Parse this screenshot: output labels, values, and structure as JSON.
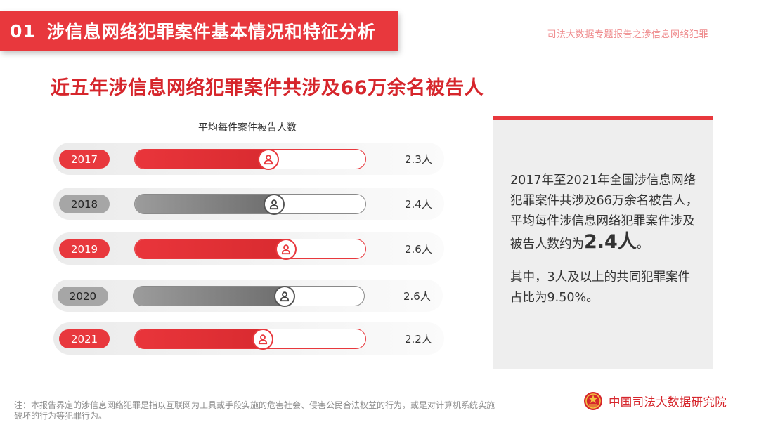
{
  "header": {
    "number": "01",
    "title": "涉信息网络犯罪案件基本情况和特征分析",
    "caption": "司法大数据专题报告之涉信息网络犯罪"
  },
  "subtitle": "近五年涉信息网络犯罪案件共涉及66万余名被告人",
  "colors": {
    "accent": "#e8383d",
    "grey": "#8a8a8a"
  },
  "chart_data": {
    "type": "bar",
    "title": "平均每件案件被告人数",
    "categories": [
      "2017",
      "2018",
      "2019",
      "2020",
      "2021"
    ],
    "values": [
      2.3,
      2.4,
      2.6,
      2.6,
      2.2
    ],
    "value_labels": [
      "2.3人",
      "2.4人",
      "2.6人",
      "2.6人",
      "2.2人"
    ],
    "highlight": [
      "red",
      "grey",
      "red",
      "grey",
      "red"
    ],
    "xlim": [
      0,
      4
    ],
    "xlabel": "",
    "ylabel": ""
  },
  "info": {
    "text_before": "2017年至2021年全国涉信息网络犯罪案件共涉及66万余名被告人，平均每件涉信息网络犯罪案件涉及被告人数约为",
    "big_value": "2.4人",
    "text_after": "。",
    "text2": "其中，3人及以上的共同犯罪案件占比为9.50%。"
  },
  "footnote": "注：本报告界定的涉信息网络犯罪是指以互联网为工具或手段实施的危害社会、侵害公民合法权益的行为，或是对计算机系统实施破坏的行为等犯罪行为。",
  "org": {
    "name": "中国司法大数据研究院",
    "icon": "court-emblem-icon"
  }
}
